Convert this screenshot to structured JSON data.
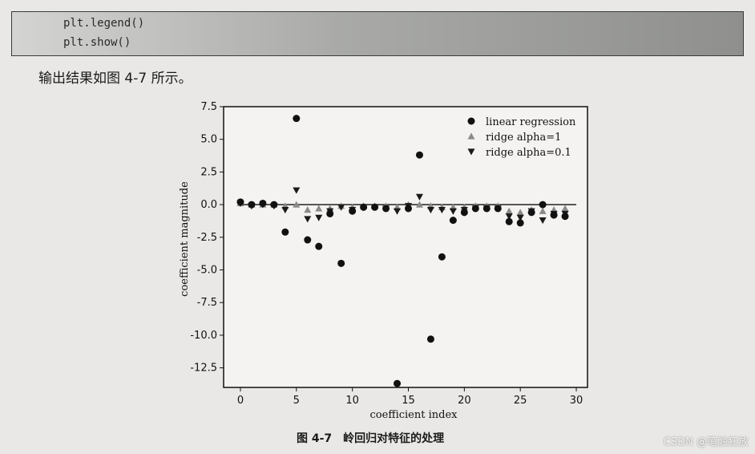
{
  "code": {
    "lines": [
      "plt.legend()",
      "plt.show()"
    ]
  },
  "intro_text": "输出结果如图 4-7 所示。",
  "figure_caption": "图 4-7　岭回归对特征的处理",
  "watermark": "CSDN @笔触狂放",
  "colors": {
    "linear": "#111111",
    "ridge1": "#8a8a8a",
    "ridge01": "#1a1a1a",
    "page": "#e9e8e6",
    "plot_bg": "#f4f3f1"
  },
  "chart_data": {
    "type": "scatter",
    "xlabel": "coefficient index",
    "ylabel": "coefficient magnitude",
    "xlim": [
      -1.5,
      31
    ],
    "ylim": [
      -14.0,
      7.5
    ],
    "xticks": [
      "0",
      "5",
      "10",
      "15",
      "20",
      "25",
      "30"
    ],
    "xtick_values": [
      0,
      5,
      10,
      15,
      20,
      25,
      30
    ],
    "yticks": [
      "7.5",
      "5.0",
      "2.5",
      "0.0",
      "-2.5",
      "-5.0",
      "-7.5",
      "-10.0",
      "-12.5"
    ],
    "ytick_values": [
      7.5,
      5.0,
      2.5,
      0.0,
      -2.5,
      -5.0,
      -7.5,
      -10.0,
      -12.5
    ],
    "legend_position": "top-right",
    "hline": {
      "xmin": 0,
      "xmax": 30,
      "y": 0
    },
    "series": [
      {
        "name": "linear regression",
        "marker": "circle",
        "x": [
          0,
          1,
          2,
          3,
          4,
          5,
          6,
          7,
          8,
          9,
          10,
          11,
          12,
          13,
          14,
          15,
          16,
          17,
          18,
          19,
          20,
          21,
          22,
          23,
          24,
          25,
          26,
          27,
          28,
          29
        ],
        "y": [
          0.2,
          0.0,
          0.1,
          0.0,
          -2.1,
          6.6,
          -2.7,
          -3.2,
          -0.7,
          -4.5,
          -0.5,
          -0.2,
          -0.2,
          -0.3,
          -13.7,
          -0.3,
          3.8,
          -10.3,
          -4.0,
          -1.2,
          -0.6,
          -0.3,
          -0.3,
          -0.3,
          -1.3,
          -1.4,
          -0.6,
          0.0,
          -0.8,
          -0.9
        ]
      },
      {
        "name": "ridge alpha=1",
        "marker": "triangle-up",
        "x": [
          0,
          1,
          2,
          3,
          4,
          5,
          6,
          7,
          8,
          9,
          10,
          11,
          12,
          13,
          14,
          15,
          16,
          17,
          18,
          19,
          20,
          21,
          22,
          23,
          24,
          25,
          26,
          27,
          28,
          29
        ],
        "y": [
          0.1,
          0.0,
          0.0,
          0.0,
          -0.1,
          0.0,
          -0.4,
          -0.3,
          -0.3,
          -0.1,
          -0.2,
          -0.1,
          -0.1,
          -0.1,
          -0.2,
          0.0,
          0.0,
          -0.1,
          -0.2,
          -0.2,
          -0.2,
          -0.1,
          -0.1,
          -0.1,
          -0.5,
          -0.6,
          -0.4,
          -0.5,
          -0.4,
          -0.3
        ]
      },
      {
        "name": "ridge alpha=0.1",
        "marker": "triangle-down",
        "x": [
          0,
          1,
          2,
          3,
          4,
          5,
          6,
          7,
          8,
          9,
          10,
          11,
          12,
          13,
          14,
          15,
          16,
          17,
          18,
          19,
          20,
          21,
          22,
          23,
          24,
          25,
          26,
          27,
          28,
          29
        ],
        "y": [
          0.1,
          -0.1,
          0.0,
          -0.1,
          -0.4,
          1.1,
          -1.1,
          -1.0,
          -0.5,
          -0.2,
          -0.4,
          -0.2,
          -0.2,
          -0.3,
          -0.5,
          -0.1,
          0.6,
          -0.4,
          -0.4,
          -0.5,
          -0.4,
          -0.3,
          -0.3,
          -0.3,
          -0.9,
          -1.0,
          -0.5,
          -1.2,
          -0.7,
          -0.7
        ]
      }
    ]
  }
}
